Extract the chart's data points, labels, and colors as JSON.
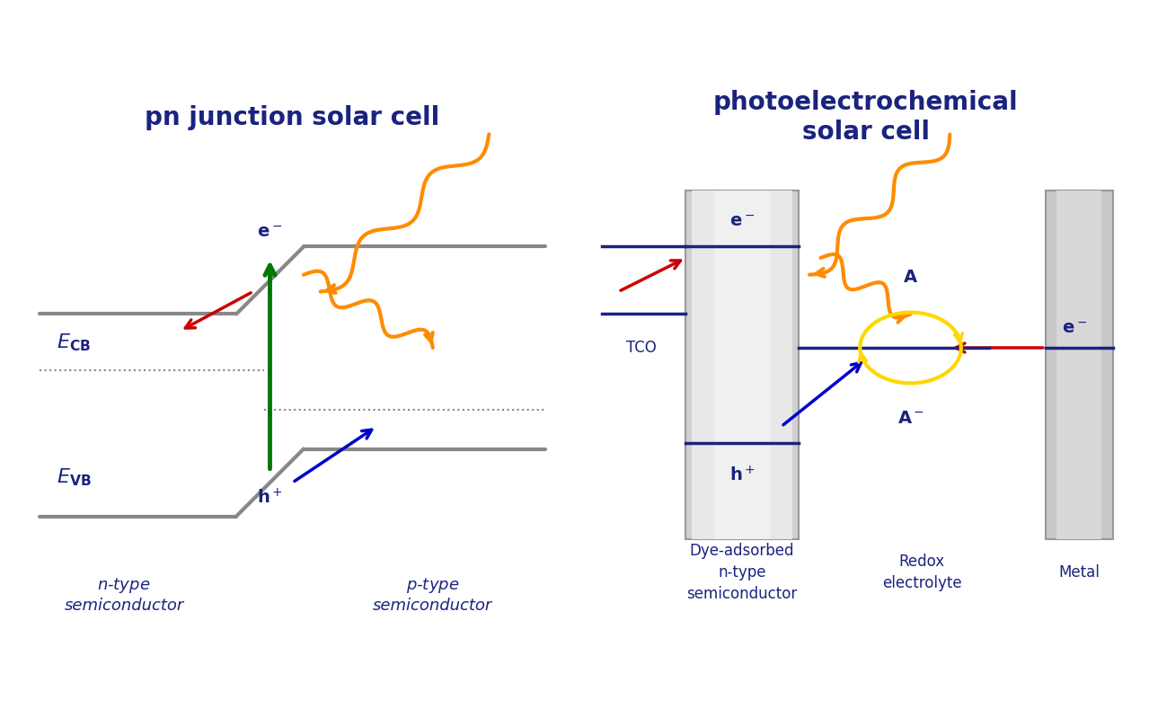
{
  "fig_width": 12.89,
  "fig_height": 7.99,
  "bg_color": "#ffffff",
  "panel_border_color": "#1a237e",
  "panel_border_lw": 2.5,
  "dark_navy": "#1a237e",
  "gray_line": "#888888",
  "green": "#007700",
  "orange": "#FF8C00",
  "red": "#CC0000",
  "blue": "#0000CC",
  "yellow": "#FFD700",
  "left_title": "pn junction solar cell",
  "right_title": "photoelectrochemical\nsolar cell",
  "left_labels": {
    "ECB": "E_CB",
    "EVB": "E_VB",
    "eminus_left": "e−",
    "hplus_left": "h⁺",
    "n_type": "n-type\nsemiconductor",
    "p_type": "p-type\nsemiconductor"
  },
  "right_labels": {
    "eminus": "e−",
    "hplus": "h⁺",
    "TCO": "TCO",
    "A": "A",
    "Aminus": "A−",
    "eminus_right": "e−",
    "redox": "Redox\nelectrolyte",
    "dye_semi": "Dye-adsorbed\nn-type\nsemiconductor",
    "metal": "Metal"
  }
}
